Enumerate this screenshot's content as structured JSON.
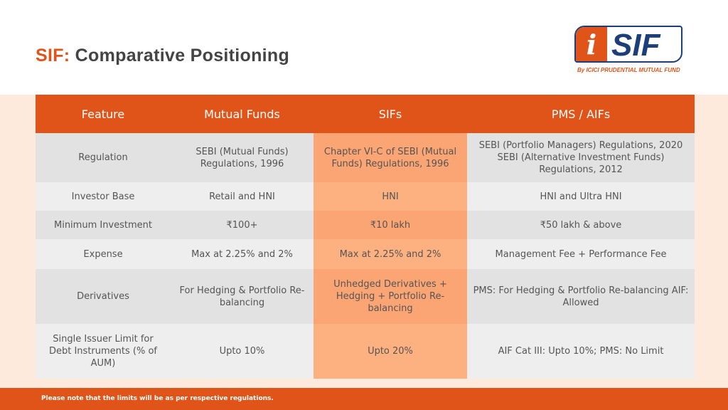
{
  "title": {
    "accent": "SIF:",
    "rest": "Comparative Positioning"
  },
  "logo": {
    "i": "i",
    "sif": "SIF",
    "sub": "By ICICI PRUDENTIAL MUTUAL FUND"
  },
  "table": {
    "headers": [
      "Feature",
      "Mutual Funds",
      "SIFs",
      "PMS / AIFs"
    ],
    "rows": [
      [
        "Regulation",
        "SEBI (Mutual Funds) Regulations, 1996",
        "Chapter VI-C of SEBI (Mutual Funds) Regulations, 1996",
        "SEBI (Portfolio Managers) Regulations, 2020 SEBI (Alternative Investment Funds) Regulations, 2012"
      ],
      [
        "Investor Base",
        "Retail and HNI",
        "HNI",
        "HNI and Ultra HNI"
      ],
      [
        "Minimum Investment",
        "₹100+",
        "₹10 lakh",
        "₹50 lakh & above"
      ],
      [
        "Expense",
        "Max at 2.25% and 2%",
        "Max at 2.25% and 2%",
        "Management Fee + Performance Fee"
      ],
      [
        "Derivatives",
        "For Hedging & Portfolio Re-balancing",
        "Unhedged Derivatives + Hedging + Portfolio Re-balancing",
        "PMS: For Hedging & Portfolio Re-balancing AIF: Allowed"
      ],
      [
        "Single Issuer Limit for Debt Instruments (% of AUM)",
        "Upto 10%",
        "Upto 20%",
        "AIF Cat III: Upto 10%; PMS: No Limit"
      ]
    ]
  },
  "footer": "Please note that the limits will be as per respective regulations."
}
